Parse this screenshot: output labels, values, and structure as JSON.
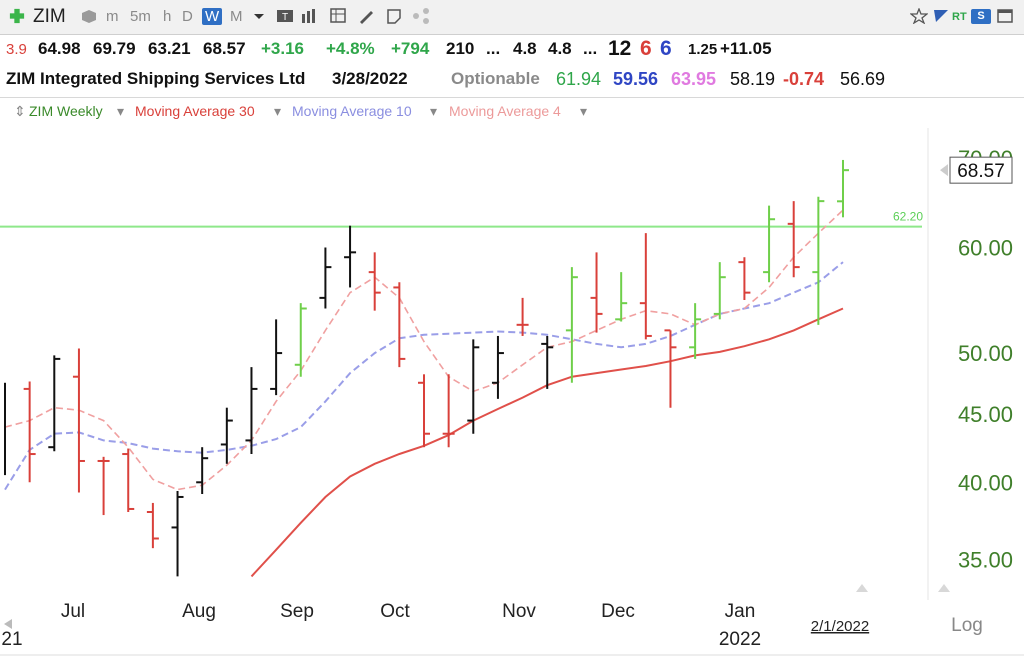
{
  "toolbar": {
    "symbol": "ZIM",
    "intervals": [
      "m",
      "5m",
      "h",
      "D",
      "W",
      "M"
    ],
    "active_interval": "W",
    "icons": [
      "add-icon",
      "cube-icon",
      "text-icon",
      "bars-icon",
      "grid-icon",
      "pen-icon",
      "note-icon",
      "share-icon",
      "star-icon",
      "flag-icon",
      "rt-icon",
      "s-icon",
      "window-icon"
    ],
    "rt_label": "RT",
    "s_label": "S"
  },
  "quote_row": {
    "partial": "3.9",
    "open": "64.98",
    "high": "69.79",
    "low": "63.21",
    "close": "68.57",
    "change": "+3.16",
    "change_pct": "+4.8%",
    "volume_change": "+794",
    "f1": "210",
    "dots1": "...",
    "f2": "4.8",
    "f3": "4.8",
    "dots2": "...",
    "f4": "12",
    "f5": "6",
    "f6": "6",
    "f7": "1.25",
    "f8": "+11.05"
  },
  "info_row": {
    "name": "ZIM Integrated Shipping Services Ltd",
    "date": "3/28/2022",
    "optionable": "Optionable",
    "v1": "61.94",
    "v2": "59.56",
    "v3": "63.95",
    "v4": "58.19",
    "v5": "-0.74",
    "v6": "56.69"
  },
  "legend": {
    "series": [
      "ZIM Weekly",
      "Moving Average 30",
      "Moving Average 10",
      "Moving Average 4"
    ],
    "arrow": "▾"
  },
  "colors": {
    "up": "#6fcf4a",
    "down": "#d9403a",
    "neutral": "#111111",
    "ma30": "#e0504a",
    "ma10": "#9a9ee8",
    "ma4": "#f0a0a0",
    "hline": "#8ee88a",
    "axis_text": "#3f7f2a"
  },
  "chart_data": {
    "type": "ohlc",
    "scale": "log",
    "ylim": [
      33.5,
      71
    ],
    "yticks": [
      "35.00",
      "40.00",
      "45.00",
      "50.00",
      "60.00",
      "70.00"
    ],
    "xlabels": [
      "Jul",
      "Aug",
      "Sep",
      "Oct",
      "Nov",
      "Dec",
      "Jan",
      "2022"
    ],
    "x_bottom_left": "21",
    "scale_label": "Log",
    "date_label": "2/1/2022",
    "price_label": "68.57",
    "horizontal_line": {
      "value": 62.2,
      "label": "62.20"
    },
    "bars": [
      {
        "dir": "neutral",
        "high": 47.5,
        "low": 40.5
      },
      {
        "dir": "down",
        "high": 47.6,
        "low": 40.0,
        "open": 47.0,
        "close": 42.0
      },
      {
        "dir": "neutral",
        "high": 49.8,
        "low": 42.2,
        "open": 42.5,
        "close": 49.5
      },
      {
        "dir": "down",
        "high": 50.4,
        "low": 39.3,
        "open": 48.0,
        "close": 41.5
      },
      {
        "dir": "down",
        "high": 41.8,
        "low": 37.8,
        "open": 41.5,
        "close": 41.5
      },
      {
        "dir": "down",
        "high": 42.4,
        "low": 38.0,
        "open": 42.0,
        "close": 38.2
      },
      {
        "dir": "down",
        "high": 38.6,
        "low": 35.7,
        "open": 38.0,
        "close": 36.3
      },
      {
        "dir": "neutral",
        "high": 39.4,
        "low": 34.0,
        "open": 37.0,
        "close": 39.0
      },
      {
        "dir": "neutral",
        "high": 42.5,
        "low": 39.2,
        "open": 40.0,
        "close": 41.7
      },
      {
        "dir": "neutral",
        "high": 45.5,
        "low": 41.3,
        "open": 42.7,
        "close": 44.5
      },
      {
        "dir": "neutral",
        "high": 48.8,
        "low": 42.0,
        "open": 43.0,
        "close": 47.0
      },
      {
        "dir": "neutral",
        "high": 53.0,
        "low": 46.5,
        "open": 47.0,
        "close": 50.0
      },
      {
        "dir": "up",
        "high": 54.5,
        "low": 48.0,
        "open": 49.0,
        "close": 54.0
      },
      {
        "dir": "neutral",
        "high": 60.0,
        "low": 54.0,
        "open": 55.0,
        "close": 58.0
      },
      {
        "dir": "neutral",
        "high": 62.3,
        "low": 56.0,
        "open": 59.0,
        "close": 59.5
      },
      {
        "dir": "down",
        "high": 59.5,
        "low": 53.8,
        "open": 57.5,
        "close": 55.5
      },
      {
        "dir": "down",
        "high": 56.5,
        "low": 48.8,
        "open": 56.0,
        "close": 49.5
      },
      {
        "dir": "down",
        "high": 48.2,
        "low": 42.5,
        "open": 47.5,
        "close": 43.5
      },
      {
        "dir": "down",
        "high": 48.2,
        "low": 42.5,
        "open": 43.5,
        "close": 43.5
      },
      {
        "dir": "neutral",
        "high": 51.2,
        "low": 43.5,
        "open": 44.5,
        "close": 50.5
      },
      {
        "dir": "neutral",
        "high": 51.5,
        "low": 46.2,
        "open": 47.5,
        "close": 50.0
      },
      {
        "dir": "down",
        "high": 55.0,
        "low": 51.5,
        "open": 52.5,
        "close": 52.5
      },
      {
        "dir": "neutral",
        "high": 51.5,
        "low": 47.0,
        "open": 50.8,
        "close": 50.5
      },
      {
        "dir": "up",
        "high": 58.0,
        "low": 47.5,
        "open": 52.0,
        "close": 57.0
      },
      {
        "dir": "down",
        "high": 59.5,
        "low": 51.8,
        "open": 55.0,
        "close": 53.5
      },
      {
        "dir": "up",
        "high": 57.5,
        "low": 52.8,
        "open": 53.0,
        "close": 54.5
      },
      {
        "dir": "down",
        "high": 61.5,
        "low": 51.2,
        "open": 54.5,
        "close": 51.5
      },
      {
        "dir": "down",
        "high": 52.0,
        "low": 45.5,
        "open": 52.0,
        "close": 50.5
      },
      {
        "dir": "up",
        "high": 54.5,
        "low": 49.5,
        "open": 50.5,
        "close": 53.0
      },
      {
        "dir": "up",
        "high": 58.5,
        "low": 53.0,
        "open": 53.5,
        "close": 57.0
      },
      {
        "dir": "down",
        "high": 59.0,
        "low": 54.8,
        "open": 58.5,
        "close": 55.5
      },
      {
        "dir": "up",
        "high": 64.5,
        "low": 56.5,
        "open": 57.5,
        "close": 63.0
      },
      {
        "dir": "down",
        "high": 65.0,
        "low": 57.0,
        "open": 62.5,
        "close": 58.0
      },
      {
        "dir": "up",
        "high": 65.5,
        "low": 52.5,
        "open": 57.5,
        "close": 65.0
      },
      {
        "dir": "up",
        "high": 69.79,
        "low": 63.21,
        "open": 64.98,
        "close": 68.57
      }
    ],
    "ma30": [
      null,
      null,
      null,
      null,
      null,
      null,
      null,
      null,
      null,
      null,
      34.0,
      35.6,
      37.3,
      39.0,
      40.4,
      41.3,
      42.0,
      42.6,
      43.4,
      44.5,
      45.4,
      46.3,
      47.3,
      48.0,
      48.3,
      48.6,
      48.9,
      49.3,
      49.8,
      50.1,
      50.6,
      51.2,
      52.0,
      53.0,
      54.0
    ],
    "ma10": [
      39.5,
      42.3,
      43.5,
      43.6,
      43.0,
      42.8,
      42.4,
      42.2,
      42.1,
      42.3,
      42.6,
      43.1,
      44.0,
      46.0,
      48.3,
      50.0,
      51.3,
      51.6,
      51.7,
      51.8,
      51.9,
      51.8,
      51.6,
      51.2,
      50.8,
      50.5,
      50.8,
      51.5,
      52.5,
      53.5,
      54.0,
      54.5,
      55.5,
      56.5,
      58.5
    ],
    "ma4": [
      44.0,
      44.5,
      45.5,
      45.3,
      44.5,
      42.5,
      40.2,
      39.5,
      39.8,
      41.2,
      43.0,
      46.0,
      48.5,
      52.0,
      55.5,
      57.0,
      55.0,
      51.0,
      48.0,
      46.8,
      47.5,
      49.0,
      50.5,
      51.0,
      52.0,
      53.0,
      53.8,
      53.5,
      52.5,
      53.5,
      54.0,
      56.0,
      59.0,
      61.5,
      64.0
    ]
  }
}
